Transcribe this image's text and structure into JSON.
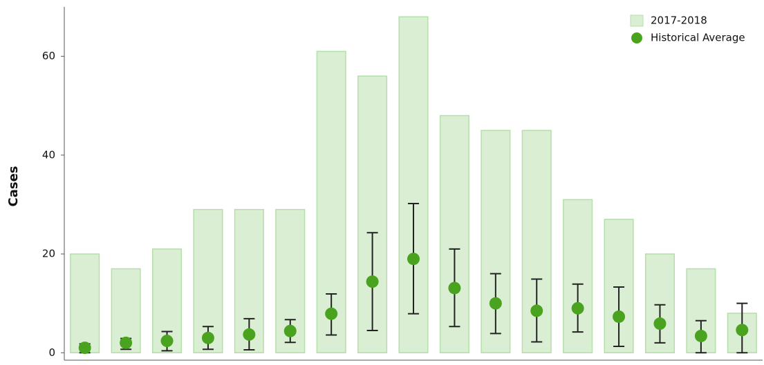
{
  "chart_data": {
    "type": "bar",
    "ylabel": "Cases",
    "categories": [
      null,
      null,
      null,
      null,
      null,
      null,
      null,
      null,
      null,
      null,
      null,
      null,
      null,
      null,
      null,
      null,
      null
    ],
    "series": [
      {
        "name": "2017-2018",
        "type": "bar",
        "color": "#d9eed3",
        "edge_color": "#b5dfa9",
        "values": [
          20,
          17,
          21,
          29,
          29,
          29,
          61,
          56,
          68,
          48,
          45,
          45,
          31,
          27,
          20,
          17,
          8
        ]
      },
      {
        "name": "Historical Average",
        "type": "point",
        "color": "#4aa31e",
        "values": [
          1.0,
          2.0,
          2.4,
          3.0,
          3.7,
          4.4,
          7.9,
          14.4,
          19.0,
          13.1,
          10.0,
          8.5,
          9.0,
          7.3,
          5.9,
          3.4,
          4.6
        ],
        "lower": [
          0,
          0.7,
          0.4,
          0.7,
          0.6,
          2.1,
          3.6,
          4.5,
          7.9,
          5.3,
          3.9,
          2.2,
          4.2,
          1.3,
          2.0,
          0,
          0
        ],
        "upper": [
          1.8,
          2.9,
          4.3,
          5.3,
          6.9,
          6.7,
          11.9,
          24.3,
          30.2,
          21.0,
          16.0,
          14.9,
          13.9,
          13.3,
          9.7,
          6.5,
          10.0
        ]
      }
    ],
    "ylim": [
      -1.5,
      70
    ],
    "yticks": [
      0,
      20,
      40,
      60
    ],
    "legend": "upper-right"
  }
}
